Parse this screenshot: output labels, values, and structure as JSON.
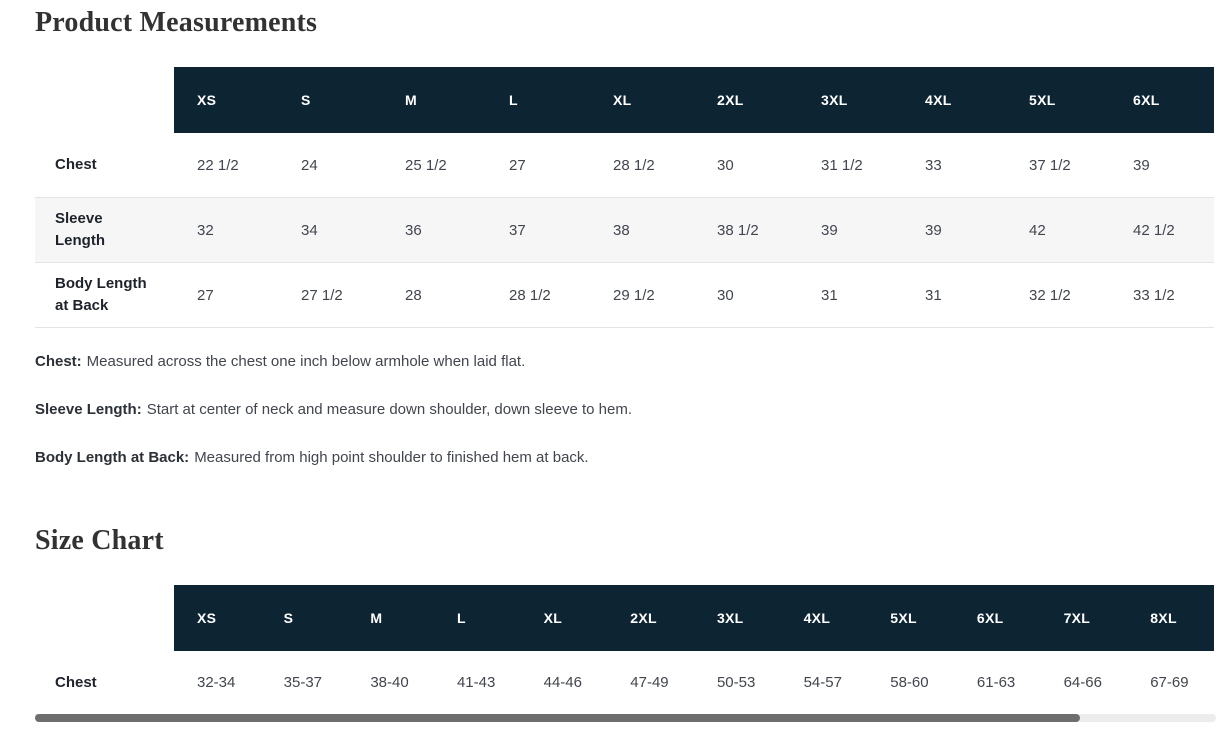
{
  "colors": {
    "header_bg": "#0d2433",
    "header_text": "#ffffff",
    "stripe_bg": "#f6f6f7",
    "row_border": "#e4e4e6",
    "scrollbar_thumb": "#6e6e6e",
    "scrollbar_track": "#ececec"
  },
  "product_measurements": {
    "title": "Product Measurements",
    "columns": [
      "XS",
      "S",
      "M",
      "L",
      "XL",
      "2XL",
      "3XL",
      "4XL",
      "5XL",
      "6XL"
    ],
    "rows": [
      {
        "label": "Chest",
        "values": [
          "22 1/2",
          "24",
          "25 1/2",
          "27",
          "28 1/2",
          "30",
          "31 1/2",
          "33",
          "37 1/2",
          "39"
        ]
      },
      {
        "label": "Sleeve Length",
        "values": [
          "32",
          "34",
          "36",
          "37",
          "38",
          "38 1/2",
          "39",
          "39",
          "42",
          "42 1/2"
        ]
      },
      {
        "label": "Body Length at Back",
        "values": [
          "27",
          "27 1/2",
          "28",
          "28 1/2",
          "29 1/2",
          "30",
          "31",
          "31",
          "32 1/2",
          "33 1/2"
        ]
      }
    ],
    "definitions": [
      {
        "term": "Chest:",
        "text": "Measured across the chest one inch below armhole when laid flat."
      },
      {
        "term": "Sleeve Length:",
        "text": "Start at center of neck and measure down shoulder, down sleeve to hem."
      },
      {
        "term": "Body Length at Back:",
        "text": "Measured from high point shoulder to finished hem at back."
      }
    ]
  },
  "size_chart": {
    "title": "Size Chart",
    "columns": [
      "XS",
      "S",
      "M",
      "L",
      "XL",
      "2XL",
      "3XL",
      "4XL",
      "5XL",
      "6XL",
      "7XL",
      "8XL"
    ],
    "rows": [
      {
        "label": "Chest",
        "values": [
          "32-34",
          "35-37",
          "38-40",
          "41-43",
          "44-46",
          "47-49",
          "50-53",
          "54-57",
          "58-60",
          "61-63",
          "64-66",
          "67-69"
        ]
      }
    ]
  }
}
